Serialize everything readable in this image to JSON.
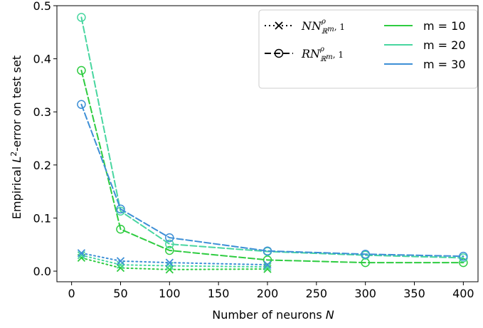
{
  "chart_data": {
    "type": "line",
    "xlabel": "Number of neurons N",
    "ylabel": "Empirical L²-error on test set",
    "xlim": [
      -15,
      415
    ],
    "ylim": [
      -0.02,
      0.5
    ],
    "xticks": [
      0,
      50,
      100,
      150,
      200,
      250,
      300,
      350,
      400
    ],
    "yticks": [
      0.0,
      0.1,
      0.2,
      0.3,
      0.4,
      0.5
    ],
    "xtick_labels": [
      "0",
      "50",
      "100",
      "150",
      "200",
      "250",
      "300",
      "350",
      "400"
    ],
    "ytick_labels": [
      "0.0",
      "0.1",
      "0.2",
      "0.3",
      "0.4",
      "0.5"
    ],
    "grid": false,
    "legend_position": "top-right",
    "legend": {
      "styles": [
        {
          "main": "NN",
          "sup": "ρ",
          "sub": "ℝ",
          "subsup": "m",
          "tail": ", 1",
          "line": "dotted",
          "marker": "x"
        },
        {
          "main": "RN",
          "sup": "ρ",
          "sub": "ℝ",
          "subsup": "m",
          "tail": ", 1",
          "line": "dashed",
          "marker": "o"
        }
      ],
      "colors": [
        {
          "label": "m = 10",
          "color": "#2ecc40"
        },
        {
          "label": "m = 20",
          "color": "#48d6a0"
        },
        {
          "label": "m = 30",
          "color": "#3d8fd6"
        }
      ]
    },
    "series": [
      {
        "style": "dashed",
        "marker": "o",
        "m": 10,
        "color": "#2ecc40",
        "x": [
          10,
          50,
          100,
          200,
          300,
          400
        ],
        "y": [
          0.378,
          0.079,
          0.039,
          0.021,
          0.016,
          0.016
        ]
      },
      {
        "style": "dashed",
        "marker": "o",
        "m": 20,
        "color": "#48d6a0",
        "x": [
          10,
          50,
          100,
          200,
          300,
          400
        ],
        "y": [
          0.478,
          0.113,
          0.051,
          0.037,
          0.03,
          0.025
        ]
      },
      {
        "style": "dashed",
        "marker": "o",
        "m": 30,
        "color": "#3d8fd6",
        "x": [
          10,
          50,
          100,
          200,
          300,
          400
        ],
        "y": [
          0.314,
          0.117,
          0.063,
          0.038,
          0.032,
          0.028
        ]
      },
      {
        "style": "dotted",
        "marker": "x",
        "m": 10,
        "color": "#2ecc40",
        "x": [
          10,
          50,
          100,
          200
        ],
        "y": [
          0.025,
          0.006,
          0.003,
          0.004
        ]
      },
      {
        "style": "dotted",
        "marker": "x",
        "m": 20,
        "color": "#48d6a0",
        "x": [
          10,
          50,
          100,
          200
        ],
        "y": [
          0.03,
          0.012,
          0.01,
          0.008
        ]
      },
      {
        "style": "dotted",
        "marker": "x",
        "m": 30,
        "color": "#3d8fd6",
        "x": [
          10,
          50,
          100,
          200
        ],
        "y": [
          0.034,
          0.019,
          0.016,
          0.012
        ]
      }
    ]
  }
}
